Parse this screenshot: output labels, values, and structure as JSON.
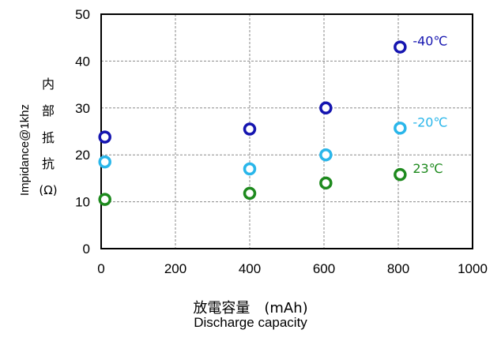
{
  "chart_data": {
    "type": "scatter",
    "xlim": [
      0,
      1000
    ],
    "ylim": [
      0,
      50
    ],
    "x_ticks": [
      0,
      200,
      400,
      600,
      800,
      1000
    ],
    "y_ticks": [
      0,
      10,
      20,
      30,
      40,
      50
    ],
    "grid": true,
    "ylabel": "Impidance@1khz",
    "ylabel_jp": [
      "内",
      "部",
      "抵",
      "抗",
      "(Ω)"
    ],
    "xlabel_jp": "放電容量　(mAh)",
    "xlabel": "Discharge capacity",
    "series": [
      {
        "name": "-40℃",
        "color": "#1515b0",
        "x": [
          10,
          400,
          605,
          805
        ],
        "y": [
          23.8,
          25.5,
          30.0,
          43.0
        ]
      },
      {
        "name": "-20℃",
        "color": "#29b6ea",
        "x": [
          10,
          400,
          605,
          805
        ],
        "y": [
          18.5,
          17.0,
          20.0,
          25.7
        ]
      },
      {
        "name": "23℃",
        "color": "#1e8a1e",
        "x": [
          10,
          400,
          605,
          805
        ],
        "y": [
          10.5,
          11.8,
          14.0,
          15.8
        ]
      }
    ]
  }
}
